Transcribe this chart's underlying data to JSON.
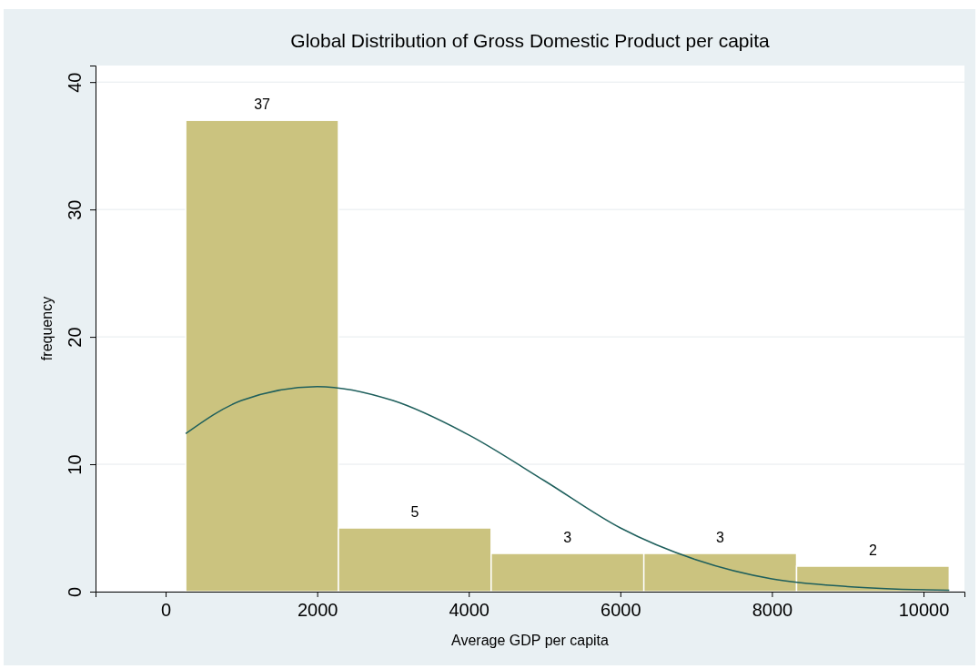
{
  "chart_data": {
    "type": "histogram",
    "title": "Global Distribution of Gross Domestic Product per capita",
    "xlabel": "Average GDP per capita",
    "ylabel": "frequency",
    "bins": [
      265,
      2280,
      4295,
      6310,
      8325,
      10340
    ],
    "values": [
      37,
      5,
      3,
      3,
      2
    ],
    "color": "#cbc37f",
    "value_labels": [
      "37",
      "5",
      "3",
      "3",
      "2"
    ],
    "series": [
      {
        "type": "line",
        "color": "#1e5f5c",
        "x": [
          265,
          1000,
          2000,
          3000,
          4000,
          5000,
          6000,
          7000,
          8000,
          9000,
          10340
        ],
        "values": [
          12.4,
          15.0,
          16.1,
          15.0,
          12.3,
          8.7,
          5.0,
          2.5,
          1.0,
          0.4,
          0.1
        ]
      }
    ],
    "xlim": [
      -925,
      10540
    ],
    "ylim": [
      0,
      41.3
    ],
    "xticks": [
      0,
      2000,
      4000,
      6000,
      8000,
      10000
    ],
    "yticks": [
      0,
      10,
      20,
      30,
      40
    ],
    "grid": "y"
  }
}
